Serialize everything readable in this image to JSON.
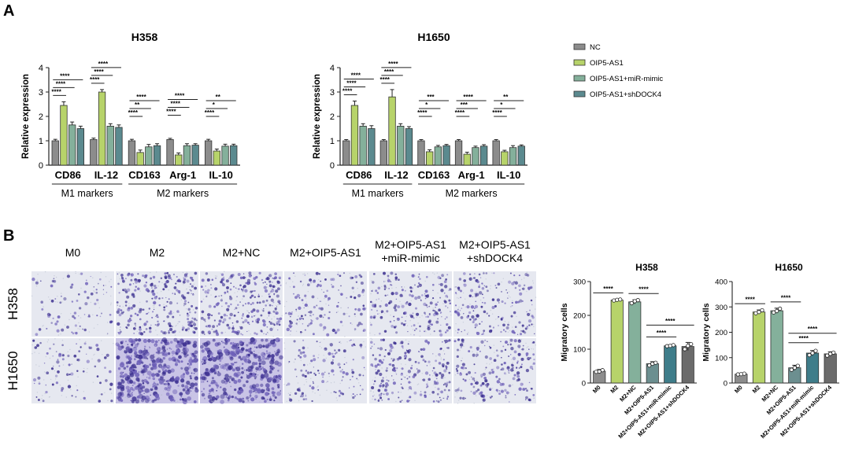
{
  "panels": {
    "A": "A",
    "B": "B"
  },
  "legend": {
    "items": [
      {
        "label": "NC",
        "color": "#8c8c8c"
      },
      {
        "label": "OIP5-AS1",
        "color": "#b7d36a"
      },
      {
        "label": "OIP5-AS1+miR-mimic",
        "color": "#84b09b"
      },
      {
        "label": "OIP5-AS1+shDOCK4",
        "color": "#5b8a8f"
      }
    ]
  },
  "micrographs": {
    "columns": [
      "M0",
      "M2",
      "M2+NC",
      "M2+OIP5-AS1",
      "M2+OIP5-AS1\n+miR-mimic",
      "M2+OIP5-AS1\n+shDOCK4"
    ],
    "column_lines": [
      [
        "M0"
      ],
      [
        "M2"
      ],
      [
        "M2+NC"
      ],
      [
        "M2+OIP5-AS1"
      ],
      [
        "M2+OIP5-AS1",
        "+miR-mimic"
      ],
      [
        "M2+OIP5-AS1",
        "+shDOCK4"
      ]
    ],
    "rows": [
      "H358",
      "H1650"
    ],
    "density": [
      [
        0.1,
        0.55,
        0.6,
        0.25,
        0.4,
        0.35
      ],
      [
        0.1,
        0.95,
        0.9,
        0.2,
        0.45,
        0.4
      ]
    ]
  },
  "chart_data": [
    {
      "type": "bar",
      "title": "H358",
      "ylabel": "Relative expression",
      "ylim": [
        0,
        4
      ],
      "yticks": [
        0,
        1,
        2,
        3,
        4
      ],
      "categories": [
        "CD86",
        "IL-12",
        "CD163",
        "Arg-1",
        "IL-10"
      ],
      "groups": [
        {
          "label": "M1 markers",
          "categories": [
            "CD86",
            "IL-12"
          ]
        },
        {
          "label": "M2 markers",
          "categories": [
            "CD163",
            "Arg-1",
            "IL-10"
          ]
        }
      ],
      "series": [
        {
          "name": "NC",
          "values": [
            1.0,
            1.05,
            1.0,
            1.05,
            1.0
          ],
          "errors": [
            0.06,
            0.06,
            0.06,
            0.05,
            0.06
          ]
        },
        {
          "name": "OIP5-AS1",
          "values": [
            2.45,
            3.0,
            0.52,
            0.42,
            0.58
          ],
          "errors": [
            0.15,
            0.1,
            0.1,
            0.08,
            0.08
          ]
        },
        {
          "name": "OIP5-AS1+miR-mimic",
          "values": [
            1.65,
            1.6,
            0.75,
            0.8,
            0.78
          ],
          "errors": [
            0.12,
            0.1,
            0.1,
            0.08,
            0.08
          ]
        },
        {
          "name": "OIP5-AS1+shDOCK4",
          "values": [
            1.5,
            1.55,
            0.8,
            0.82,
            0.8
          ],
          "errors": [
            0.1,
            0.1,
            0.08,
            0.06,
            0.06
          ]
        }
      ],
      "significance": [
        [
          "****",
          "****",
          "****"
        ],
        [
          "****",
          "****",
          "****"
        ],
        [
          "****",
          "**",
          "****"
        ],
        [
          "****",
          "****",
          "****"
        ],
        [
          "****",
          "*",
          "**"
        ]
      ]
    },
    {
      "type": "bar",
      "title": "H1650",
      "ylabel": "Relative expression",
      "ylim": [
        0,
        4
      ],
      "yticks": [
        0,
        1,
        2,
        3,
        4
      ],
      "categories": [
        "CD86",
        "IL-12",
        "CD163",
        "Arg-1",
        "IL-10"
      ],
      "groups": [
        {
          "label": "M1 markers",
          "categories": [
            "CD86",
            "IL-12"
          ]
        },
        {
          "label": "M2 markers",
          "categories": [
            "CD163",
            "Arg-1",
            "IL-10"
          ]
        }
      ],
      "series": [
        {
          "name": "NC",
          "values": [
            1.0,
            1.0,
            1.0,
            1.0,
            1.0
          ],
          "errors": [
            0.05,
            0.05,
            0.05,
            0.05,
            0.05
          ]
        },
        {
          "name": "OIP5-AS1",
          "values": [
            2.45,
            2.8,
            0.55,
            0.45,
            0.55
          ],
          "errors": [
            0.18,
            0.3,
            0.08,
            0.08,
            0.06
          ]
        },
        {
          "name": "OIP5-AS1+miR-mimic",
          "values": [
            1.6,
            1.6,
            0.75,
            0.72,
            0.72
          ],
          "errors": [
            0.1,
            0.1,
            0.06,
            0.06,
            0.08
          ]
        },
        {
          "name": "OIP5-AS1+shDOCK4",
          "values": [
            1.5,
            1.5,
            0.8,
            0.78,
            0.78
          ],
          "errors": [
            0.12,
            0.08,
            0.05,
            0.06,
            0.05
          ]
        }
      ],
      "significance": [
        [
          "****",
          "****",
          "****"
        ],
        [
          "****",
          "****",
          "****"
        ],
        [
          "****",
          "*",
          "***"
        ],
        [
          "****",
          "***",
          "****"
        ],
        [
          "****",
          "*",
          "**"
        ]
      ]
    },
    {
      "type": "bar",
      "title": "H358",
      "ylabel": "Migratory cells",
      "ylim": [
        0,
        300
      ],
      "yticks": [
        0,
        100,
        200,
        300
      ],
      "categories": [
        "M0",
        "M2",
        "M2+NC",
        "M2+OIP5-AS1",
        "M2+OIP5-AS1+miR-mimic",
        "M2+OIP5-AS1+shDOCK4"
      ],
      "colors": [
        "#8c8c8c",
        "#b7d36a",
        "#84b09b",
        "#6c8f90",
        "#3f7d8a",
        "#6b6b6b"
      ],
      "values": [
        35,
        245,
        240,
        57,
        110,
        108
      ],
      "errors": [
        5,
        3,
        6,
        6,
        3,
        12
      ],
      "points": [
        [
          33,
          34,
          38
        ],
        [
          244,
          246,
          247
        ],
        [
          236,
          242,
          245
        ],
        [
          52,
          57,
          60
        ],
        [
          109,
          110,
          112
        ],
        [
          100,
          110,
          115
        ]
      ],
      "significance": [
        {
          "from": 0,
          "to": 1,
          "label": "****"
        },
        {
          "from": 2,
          "to": 3,
          "label": "****"
        },
        {
          "from": 3,
          "to": 4,
          "label": "****"
        },
        {
          "from": 3,
          "to": 5,
          "label": "****"
        }
      ]
    },
    {
      "type": "bar",
      "title": "H1650",
      "ylabel": "Migratory cells",
      "ylim": [
        0,
        400
      ],
      "yticks": [
        0,
        100,
        200,
        300,
        400
      ],
      "categories": [
        "M0",
        "M2",
        "M2+NC",
        "M2+OIP5-AS1",
        "M2+OIP5-AS1+miR-mimic",
        "M2+OIP5-AS1+shDOCK4"
      ],
      "colors": [
        "#8c8c8c",
        "#b7d36a",
        "#84b09b",
        "#6c8f90",
        "#3f7d8a",
        "#6b6b6b"
      ],
      "values": [
        35,
        280,
        285,
        60,
        118,
        115
      ],
      "errors": [
        3,
        8,
        10,
        10,
        10,
        8
      ],
      "points": [
        [
          34,
          35,
          37
        ],
        [
          275,
          280,
          287
        ],
        [
          278,
          284,
          293
        ],
        [
          52,
          60,
          68
        ],
        [
          110,
          118,
          127
        ],
        [
          108,
          115,
          120
        ]
      ],
      "significance": [
        {
          "from": 0,
          "to": 1,
          "label": "****"
        },
        {
          "from": 2,
          "to": 3,
          "label": "****"
        },
        {
          "from": 3,
          "to": 4,
          "label": "****"
        },
        {
          "from": 3,
          "to": 5,
          "label": "****"
        }
      ]
    }
  ]
}
